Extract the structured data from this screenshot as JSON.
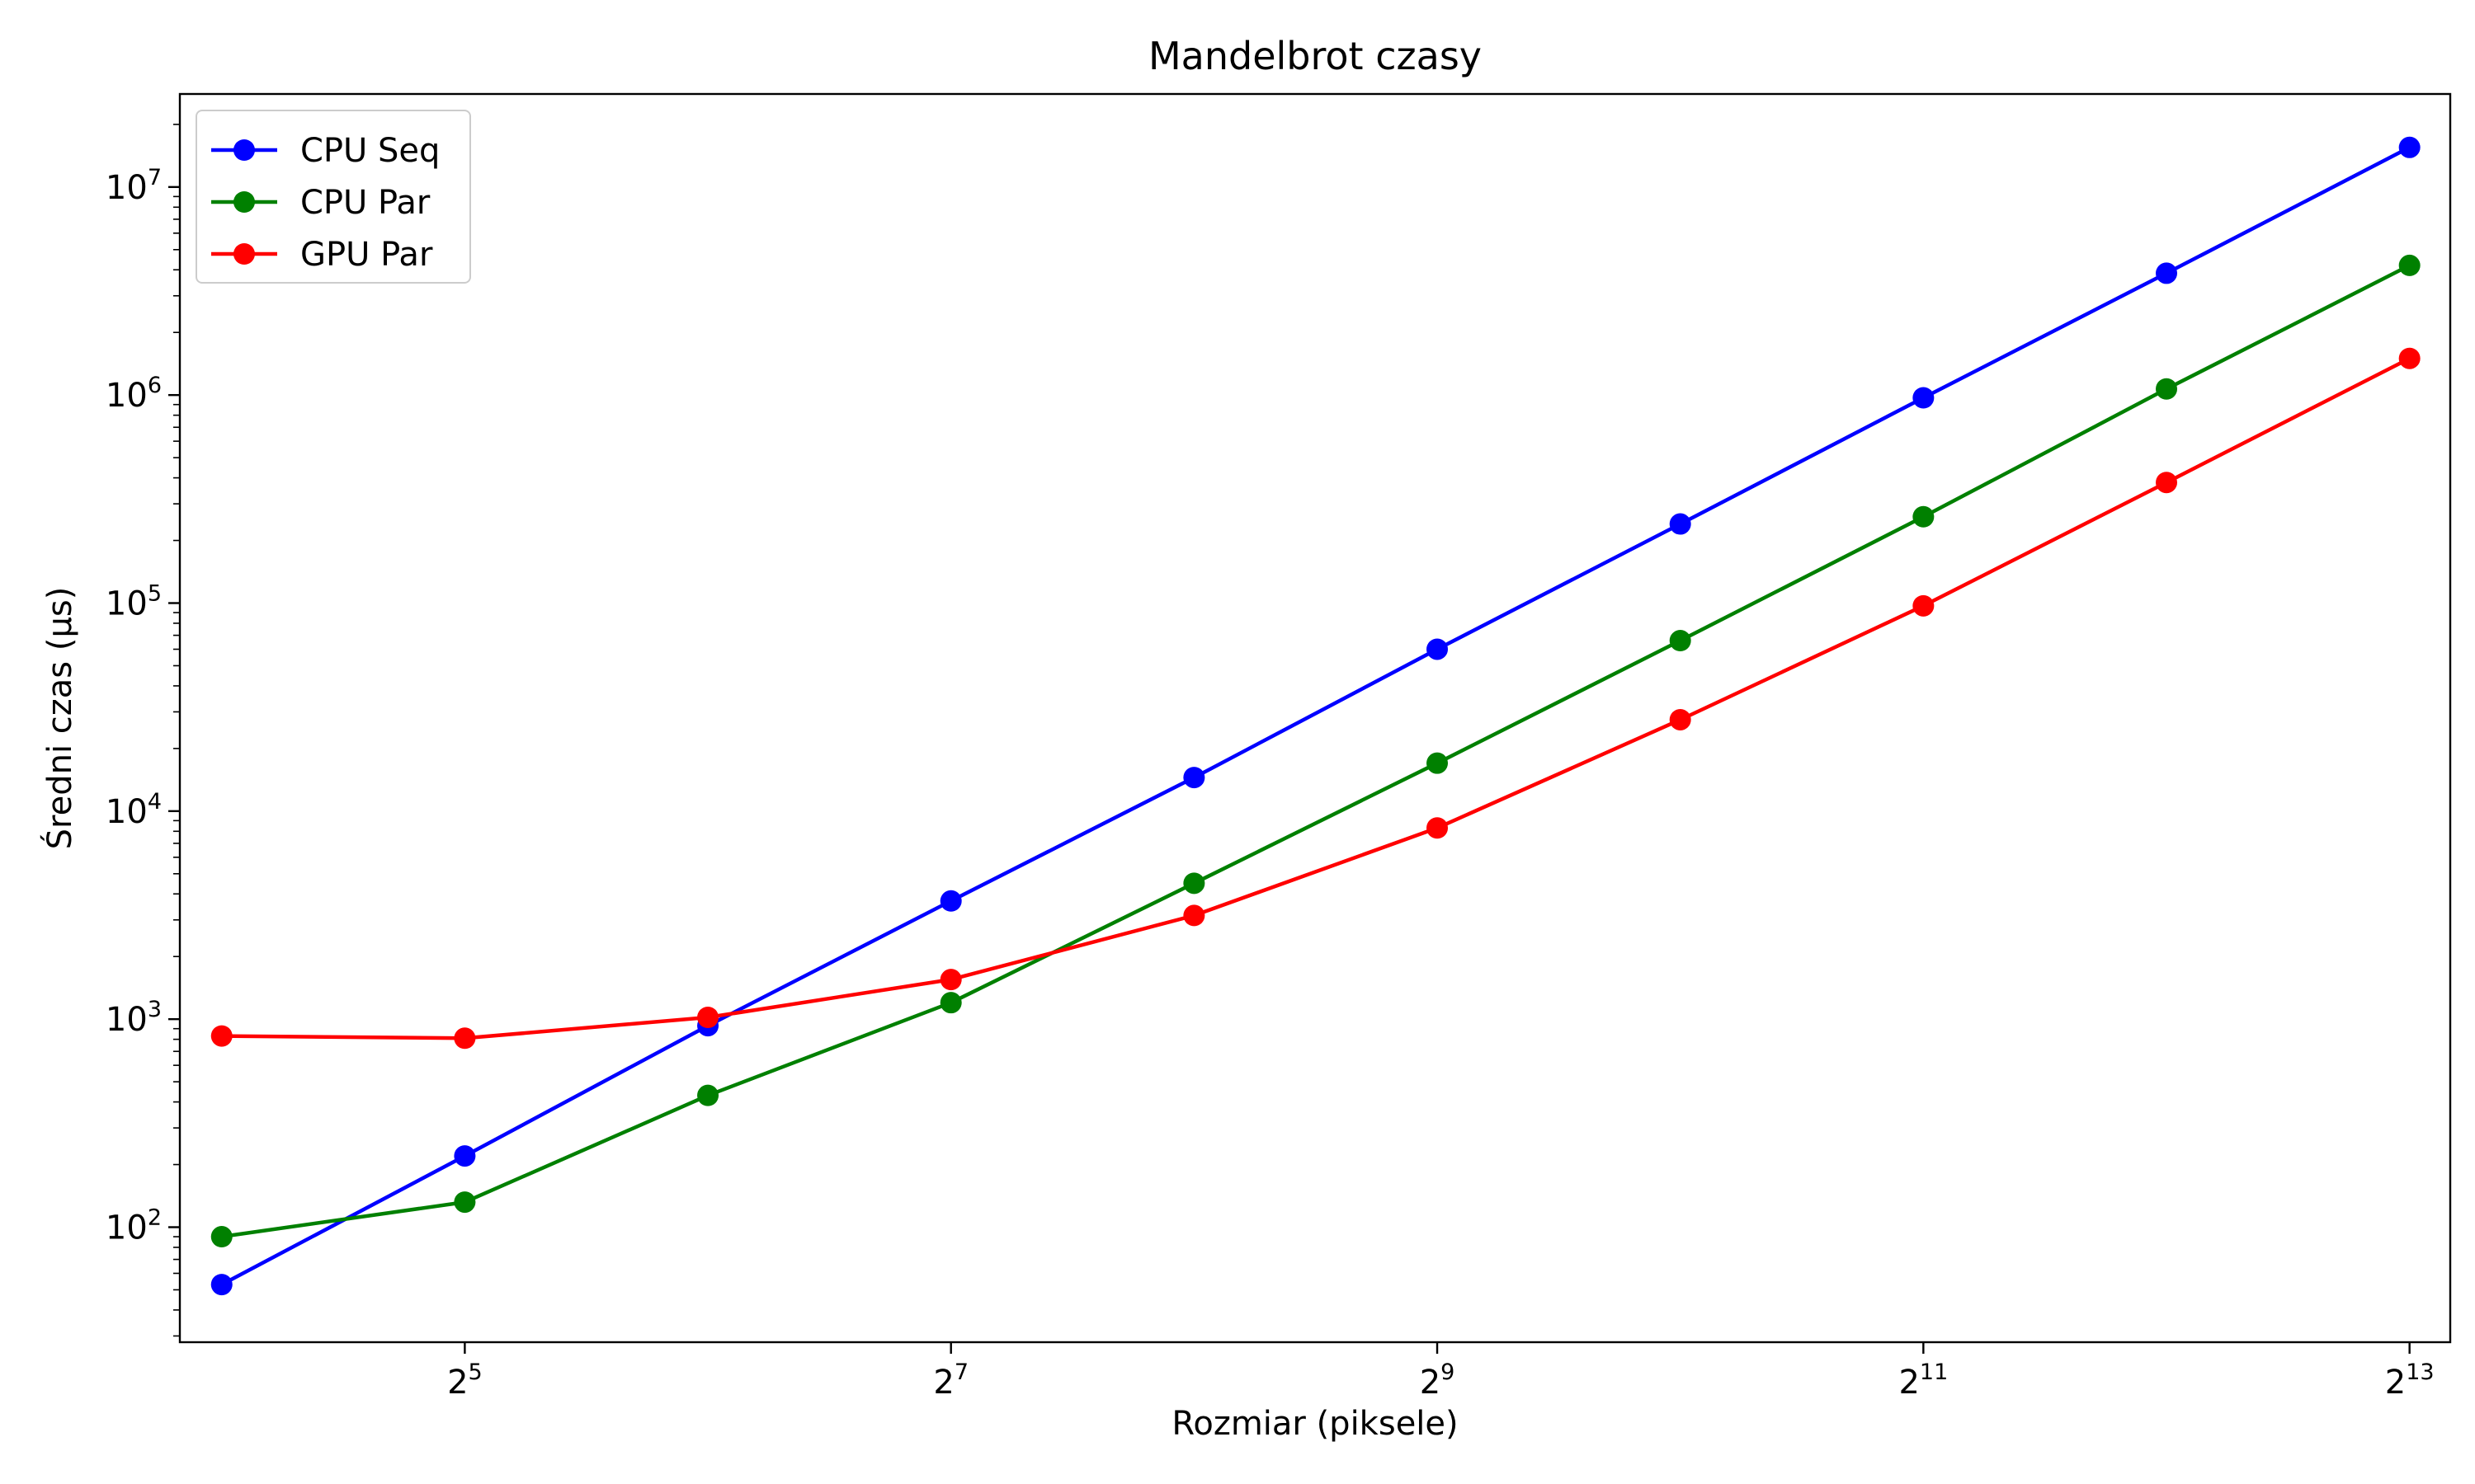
{
  "chart_data": {
    "type": "line",
    "title": "Mandelbrot czasy",
    "xlabel": "Rozmiar (piksele)",
    "ylabel": "Średni czas (µs)",
    "x_scale": "log2",
    "y_scale": "log10",
    "x": [
      16,
      32,
      64,
      128,
      256,
      512,
      1024,
      2048,
      4096,
      8192
    ],
    "xlim": [
      14.2,
      9200
    ],
    "ylim": [
      28,
      28000000
    ],
    "x_ticks": [
      {
        "value": 32,
        "base": "2",
        "exp": "5"
      },
      {
        "value": 128,
        "base": "2",
        "exp": "7"
      },
      {
        "value": 512,
        "base": "2",
        "exp": "9"
      },
      {
        "value": 2048,
        "base": "2",
        "exp": "11"
      },
      {
        "value": 8192,
        "base": "2",
        "exp": "13"
      }
    ],
    "y_ticks": [
      {
        "value": 100,
        "base": "10",
        "exp": "2"
      },
      {
        "value": 1000,
        "base": "10",
        "exp": "3"
      },
      {
        "value": 10000,
        "base": "10",
        "exp": "4"
      },
      {
        "value": 100000,
        "base": "10",
        "exp": "5"
      },
      {
        "value": 1000000,
        "base": "10",
        "exp": "6"
      },
      {
        "value": 10000000,
        "base": "10",
        "exp": "7"
      }
    ],
    "series": [
      {
        "name": "CPU Seq",
        "color": "#0000ff",
        "values": [
          53,
          220,
          930,
          3700,
          14500,
          60000,
          240000,
          970000,
          3850000,
          15500000
        ]
      },
      {
        "name": "CPU Par",
        "color": "#008000",
        "values": [
          90,
          132,
          430,
          1200,
          4500,
          17000,
          66000,
          260000,
          1070000,
          4200000
        ]
      },
      {
        "name": "GPU Par",
        "color": "#ff0000",
        "values": [
          830,
          810,
          1020,
          1550,
          3150,
          8300,
          27500,
          97000,
          380000,
          1500000
        ]
      }
    ],
    "legend_position": "top-left",
    "grid": false
  }
}
